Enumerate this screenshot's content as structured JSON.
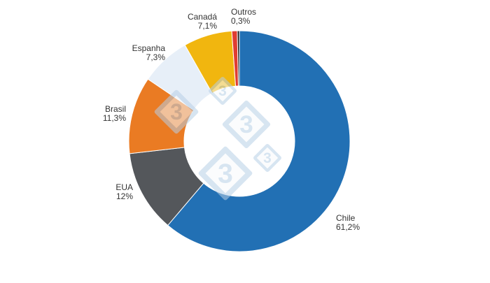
{
  "chart_data": {
    "type": "pie",
    "variant": "donut",
    "title": "",
    "legend": "none",
    "slices": [
      {
        "label": "Chile",
        "value_label": "61,2%",
        "value": 61.2,
        "color": "#2270b4"
      },
      {
        "label": "EUA",
        "value_label": "12%",
        "value": 12.0,
        "color": "#54575b"
      },
      {
        "label": "Brasil",
        "value_label": "11,3%",
        "value": 11.3,
        "color": "#ea7b23"
      },
      {
        "label": "Espanha",
        "value_label": "7,3%",
        "value": 7.3,
        "color": "#e7eff8"
      },
      {
        "label": "Canadá",
        "value_label": "7,1%",
        "value": 7.1,
        "color": "#f1b60f"
      },
      {
        "label": "",
        "value_label": "",
        "value": 0.8,
        "color": "#e03c31"
      },
      {
        "label": "Outros",
        "value_label": "0,3%",
        "value": 0.3,
        "color": "#1a1a1a"
      }
    ]
  },
  "watermark": {
    "mark": "3",
    "color": "#b8d0e6"
  }
}
